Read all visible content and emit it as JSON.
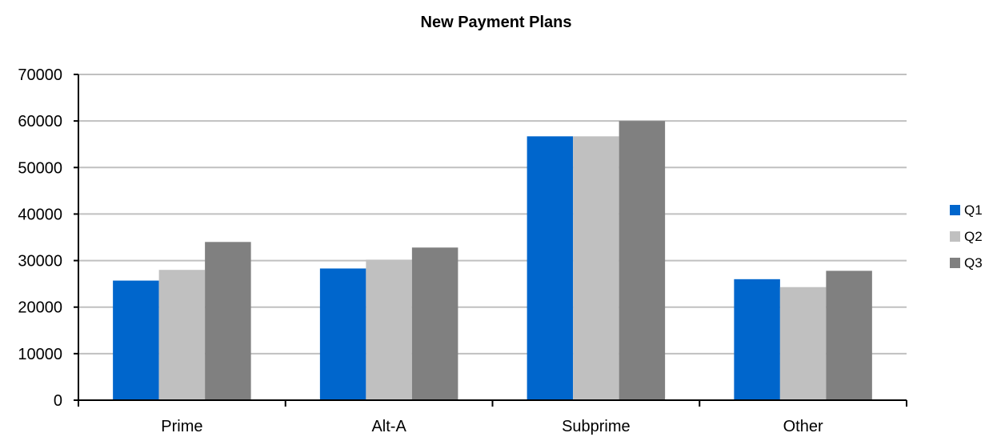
{
  "chart_data": {
    "type": "bar",
    "title": "New Payment Plans",
    "xlabel": "",
    "ylabel": "",
    "categories": [
      "Prime",
      "Alt-A",
      "Subprime",
      "Other"
    ],
    "series": [
      {
        "name": "Q1",
        "color": "#0066CC",
        "values": [
          25700,
          28300,
          56700,
          26000
        ]
      },
      {
        "name": "Q2",
        "color": "#C0C0C0",
        "values": [
          28000,
          30200,
          56700,
          24300
        ]
      },
      {
        "name": "Q3",
        "color": "#808080",
        "values": [
          34000,
          32800,
          60000,
          27800
        ]
      }
    ],
    "ylim": [
      0,
      70000
    ],
    "yticks": [
      0,
      10000,
      20000,
      30000,
      40000,
      50000,
      60000,
      70000
    ],
    "grid": true,
    "legend_position": "right"
  }
}
